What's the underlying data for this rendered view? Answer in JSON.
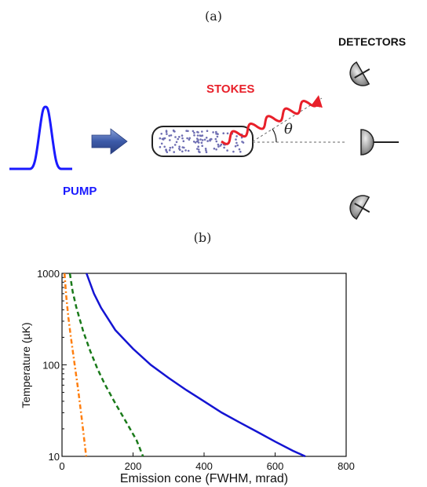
{
  "panel_a": {
    "label": "(a)",
    "detectors_label": "DETECTORS",
    "stokes_label": "STOKES",
    "pump_label": "PUMP",
    "theta_symbol": "θ",
    "colors": {
      "pump": "#1a1aff",
      "stokes": "#e8202a",
      "arrow": "#3a5aa8",
      "detector": "#8c8c8c",
      "atoms": "#6f6fb3"
    }
  },
  "panel_b": {
    "label": "(b)"
  },
  "chart_data": {
    "type": "line",
    "title": "",
    "xlabel": "Emission cone (FWHM, mrad)",
    "ylabel": "Temperature (µK)",
    "xlim": [
      0,
      800
    ],
    "ylim": [
      10,
      1000
    ],
    "y_scale": "log",
    "x_ticks": [
      "0",
      "200",
      "400",
      "600",
      "800"
    ],
    "y_ticks": [
      "10",
      "100",
      "1000"
    ],
    "grid": false,
    "series": [
      {
        "style": "solid",
        "color": "#1414d2",
        "x": [
          69,
          90,
          110,
          150,
          200,
          250,
          300,
          350,
          400,
          450,
          500,
          550,
          600,
          650,
          685
        ],
        "y": [
          1000,
          600,
          420,
          240,
          150,
          100,
          72,
          53,
          40,
          30,
          23.5,
          18.5,
          14.5,
          11.5,
          10
        ]
      },
      {
        "style": "dashed",
        "color": "#1a7a1a",
        "x": [
          22,
          30,
          40,
          60,
          80,
          100,
          120,
          150,
          180,
          210,
          228
        ],
        "y": [
          1000,
          630,
          430,
          230,
          140,
          90,
          62,
          38,
          24,
          15,
          10
        ]
      },
      {
        "style": "dashdot",
        "color": "#ff7f10",
        "x": [
          7,
          12,
          18,
          25,
          35,
          45,
          55,
          68
        ],
        "y": [
          1000,
          560,
          330,
          200,
          105,
          55,
          27,
          10
        ]
      }
    ]
  }
}
